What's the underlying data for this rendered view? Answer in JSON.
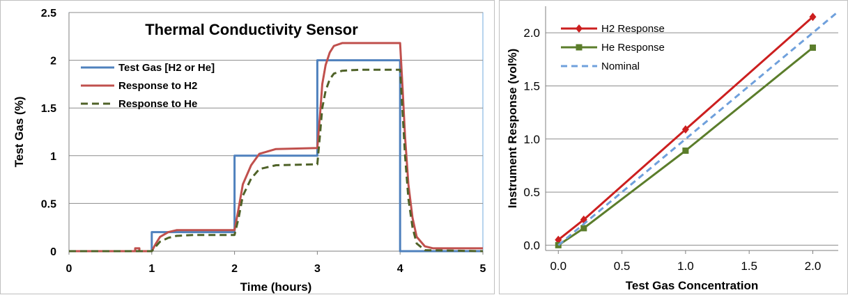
{
  "chart_data": [
    {
      "type": "line",
      "title": "Thermal Conductivity Sensor",
      "xlabel": "Time (hours)",
      "ylabel": "Test Gas (%)",
      "xlim": [
        0,
        5
      ],
      "ylim": [
        0,
        2.5
      ],
      "x_ticks": [
        "0",
        "1",
        "2",
        "3",
        "4",
        "5"
      ],
      "y_ticks": [
        "0",
        "0.5",
        "1",
        "1.5",
        "2",
        "2.5"
      ],
      "grid": "horizontal",
      "legend": "top-left",
      "series": [
        {
          "name": "Test Gas [H2 or He]",
          "color": "#4f81bd",
          "style": "solid",
          "x": [
            0,
            1,
            1,
            2,
            2,
            3,
            3,
            4,
            4,
            5
          ],
          "y": [
            0,
            0,
            0.2,
            0.2,
            1.0,
            1.0,
            2.0,
            2.0,
            0,
            0
          ]
        },
        {
          "name": "Response to H2",
          "color": "#c0504d",
          "style": "solid",
          "x": [
            0,
            0.8,
            0.8,
            0.85,
            0.85,
            1.0,
            1.05,
            1.1,
            1.2,
            1.3,
            1.5,
            2.0,
            2.05,
            2.1,
            2.2,
            2.3,
            2.5,
            3.0,
            3.03,
            3.06,
            3.1,
            3.15,
            3.2,
            3.3,
            3.5,
            4.0,
            4.03,
            4.06,
            4.1,
            4.15,
            4.2,
            4.3,
            4.4,
            5.0
          ],
          "y": [
            0,
            0,
            0.03,
            0.03,
            0,
            0,
            0.08,
            0.15,
            0.2,
            0.22,
            0.22,
            0.22,
            0.45,
            0.7,
            0.9,
            1.02,
            1.07,
            1.08,
            1.4,
            1.75,
            1.95,
            2.08,
            2.15,
            2.18,
            2.18,
            2.18,
            1.7,
            1.2,
            0.7,
            0.35,
            0.15,
            0.05,
            0.03,
            0.03
          ]
        },
        {
          "name": "Response to He",
          "color": "#4f6228",
          "style": "dashed",
          "x": [
            0,
            1.0,
            1.05,
            1.1,
            1.2,
            1.3,
            1.5,
            2.0,
            2.05,
            2.1,
            2.2,
            2.3,
            2.5,
            3.0,
            3.03,
            3.06,
            3.1,
            3.15,
            3.2,
            3.3,
            3.5,
            4.0,
            4.03,
            4.06,
            4.1,
            4.15,
            4.2,
            4.3,
            5.0
          ],
          "y": [
            0,
            0,
            0.05,
            0.1,
            0.14,
            0.16,
            0.17,
            0.17,
            0.35,
            0.58,
            0.76,
            0.86,
            0.9,
            0.91,
            1.2,
            1.5,
            1.68,
            1.8,
            1.86,
            1.89,
            1.9,
            1.9,
            1.45,
            1.0,
            0.55,
            0.25,
            0.08,
            0.01,
            0.0
          ]
        }
      ]
    },
    {
      "type": "line",
      "title": "",
      "xlabel": "Test Gas Concentration",
      "ylabel": "Instrument Response (vol%)",
      "xlim": [
        -0.1,
        2.2
      ],
      "ylim": [
        -0.05,
        2.25
      ],
      "x_ticks": [
        "0.0",
        "0.5",
        "1.0",
        "1.5",
        "2.0"
      ],
      "y_ticks": [
        "0.0",
        "0.5",
        "1.0",
        "1.5",
        "2.0"
      ],
      "grid": "horizontal",
      "legend": "top-left",
      "series": [
        {
          "name": "H2 Response",
          "color": "#cc1f1f",
          "style": "solid",
          "marker": "diamond",
          "x": [
            0,
            0.2,
            1.0,
            2.0
          ],
          "y": [
            0.05,
            0.24,
            1.09,
            2.15
          ]
        },
        {
          "name": "He Response",
          "color": "#5b7d2b",
          "style": "solid",
          "marker": "square",
          "x": [
            0,
            0.2,
            1.0,
            2.0
          ],
          "y": [
            0.0,
            0.16,
            0.89,
            1.86
          ]
        },
        {
          "name": "Nominal",
          "color": "#6fa0dc",
          "style": "dashed",
          "marker": "none",
          "x": [
            0,
            2.2
          ],
          "y": [
            0,
            2.2
          ]
        }
      ]
    }
  ]
}
